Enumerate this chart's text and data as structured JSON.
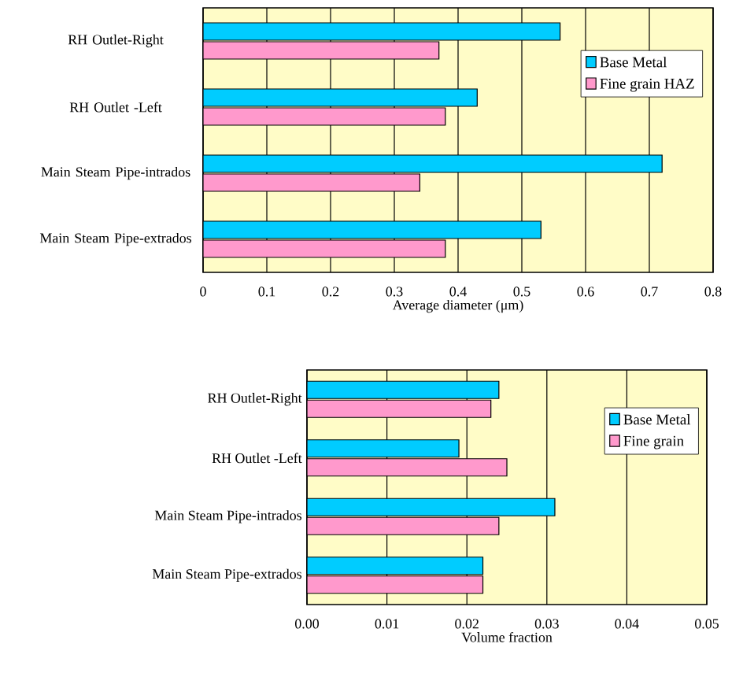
{
  "chart_data": [
    {
      "type": "bar",
      "orientation": "horizontal",
      "categories": [
        "RH Outlet-Right",
        "RH Outlet -Left",
        "Main Steam Pipe-intrados",
        "Main Steam Pipe-extrados"
      ],
      "series": [
        {
          "name": "Base Metal",
          "color": "#00ccff",
          "values": [
            0.56,
            0.43,
            0.72,
            0.53
          ]
        },
        {
          "name": "Fine grain HAZ",
          "color": "#ff99cc",
          "values": [
            0.37,
            0.38,
            0.34,
            0.38
          ]
        }
      ],
      "xlabel": "Average diameter (μm)",
      "xlim": [
        0,
        0.8
      ],
      "xticks": [
        0,
        0.1,
        0.2,
        0.3,
        0.4,
        0.5,
        0.6,
        0.7,
        0.8
      ],
      "grid": "x",
      "legend": "top right"
    },
    {
      "type": "bar",
      "orientation": "horizontal",
      "categories": [
        "RH Outlet-Right",
        "RH Outlet -Left",
        "Main Steam Pipe-intrados",
        "Main Steam Pipe-extrados"
      ],
      "series": [
        {
          "name": "Base Metal",
          "color": "#00ccff",
          "values": [
            0.024,
            0.019,
            0.031,
            0.022
          ]
        },
        {
          "name": "Fine grain",
          "color": "#ff99cc",
          "values": [
            0.023,
            0.025,
            0.024,
            0.022
          ]
        }
      ],
      "xlabel": "Volume fraction",
      "xlim": [
        0,
        0.05
      ],
      "xticks": [
        {
          "value": 0,
          "label": "0.00"
        },
        {
          "value": 0.01,
          "label": "0.01"
        },
        {
          "value": 0.02,
          "label": "0.02"
        },
        {
          "value": 0.03,
          "label": "0.03"
        },
        {
          "value": 0.04,
          "label": "0.04"
        },
        {
          "value": 0.05,
          "label": "0.05"
        }
      ],
      "grid": "x",
      "legend": "top right"
    }
  ]
}
